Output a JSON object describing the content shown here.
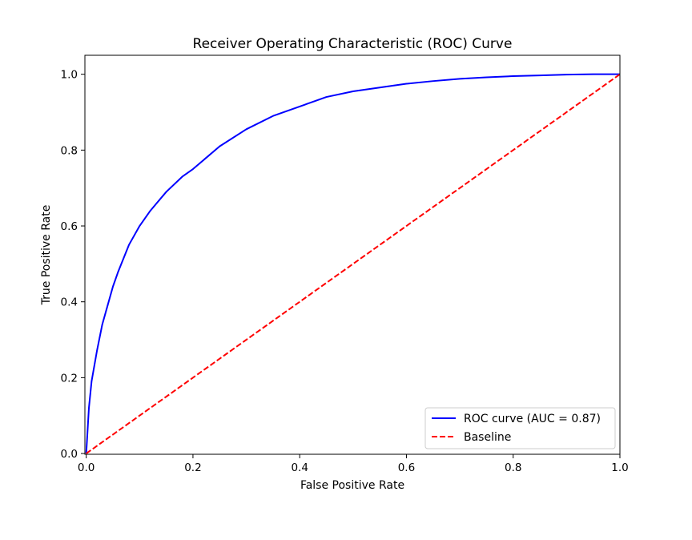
{
  "chart_data": {
    "type": "line",
    "title": "Receiver Operating Characteristic (ROC) Curve",
    "xlabel": "False Positive Rate",
    "ylabel": "True Positive Rate",
    "xlim": [
      0.0,
      1.0
    ],
    "ylim": [
      0.0,
      1.0
    ],
    "xticks": [
      "0.0",
      "0.2",
      "0.4",
      "0.6",
      "0.8",
      "1.0"
    ],
    "yticks": [
      "0.0",
      "0.2",
      "0.4",
      "0.6",
      "0.8",
      "1.0"
    ],
    "grid": false,
    "legend_position": "lower-right",
    "series": [
      {
        "name": "ROC curve (AUC = 0.87)",
        "color": "#0000ff",
        "style": "solid",
        "x": [
          0.0,
          0.005,
          0.01,
          0.02,
          0.03,
          0.04,
          0.05,
          0.06,
          0.08,
          0.1,
          0.12,
          0.15,
          0.18,
          0.2,
          0.25,
          0.3,
          0.35,
          0.4,
          0.45,
          0.5,
          0.55,
          0.6,
          0.65,
          0.7,
          0.75,
          0.8,
          0.85,
          0.9,
          0.95,
          1.0
        ],
        "y": [
          0.0,
          0.12,
          0.19,
          0.27,
          0.34,
          0.39,
          0.44,
          0.48,
          0.55,
          0.6,
          0.64,
          0.69,
          0.73,
          0.75,
          0.81,
          0.855,
          0.89,
          0.915,
          0.94,
          0.955,
          0.965,
          0.975,
          0.982,
          0.988,
          0.992,
          0.995,
          0.997,
          0.999,
          1.0,
          1.0
        ]
      },
      {
        "name": "Baseline",
        "color": "#ff0000",
        "style": "dashed",
        "x": [
          0.0,
          1.0
        ],
        "y": [
          0.0,
          1.0
        ]
      }
    ]
  }
}
